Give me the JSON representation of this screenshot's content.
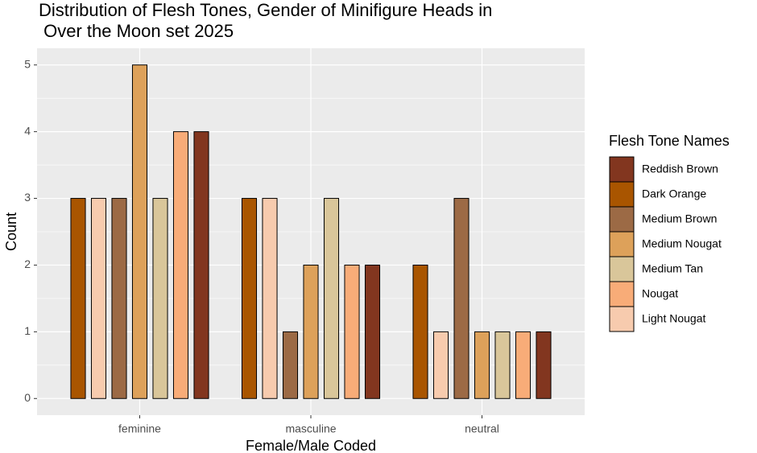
{
  "chart_data": {
    "type": "bar",
    "title": [
      "Distribution of Flesh Tones, Gender of Minifigure Heads in",
      " Over the Moon set 2025"
    ],
    "x_label": "Female/Male Coded",
    "y_label": "Count",
    "legend_title": "Flesh Tone Names",
    "categories": [
      "feminine",
      "masculine",
      "neutral"
    ],
    "series": [
      {
        "name": "Reddish Brown",
        "color": "#82361f",
        "values": [
          4,
          2,
          1
        ]
      },
      {
        "name": "Dark Orange",
        "color": "#a95500",
        "values": [
          3,
          3,
          2
        ]
      },
      {
        "name": "Medium Brown",
        "color": "#9c6a45",
        "values": [
          3,
          1,
          3
        ]
      },
      {
        "name": "Medium Nougat",
        "color": "#dda15a",
        "values": [
          5,
          2,
          1
        ]
      },
      {
        "name": "Medium Tan",
        "color": "#d9c69a",
        "values": [
          3,
          3,
          1
        ]
      },
      {
        "name": "Nougat",
        "color": "#f8ac78",
        "values": [
          4,
          2,
          1
        ]
      },
      {
        "name": "Light Nougat",
        "color": "#f7cbae",
        "values": [
          3,
          3,
          1
        ]
      }
    ],
    "ylim": [
      -0.25,
      5.25
    ],
    "yticks": [
      0,
      1,
      2,
      3,
      4,
      5
    ],
    "grid": true
  }
}
